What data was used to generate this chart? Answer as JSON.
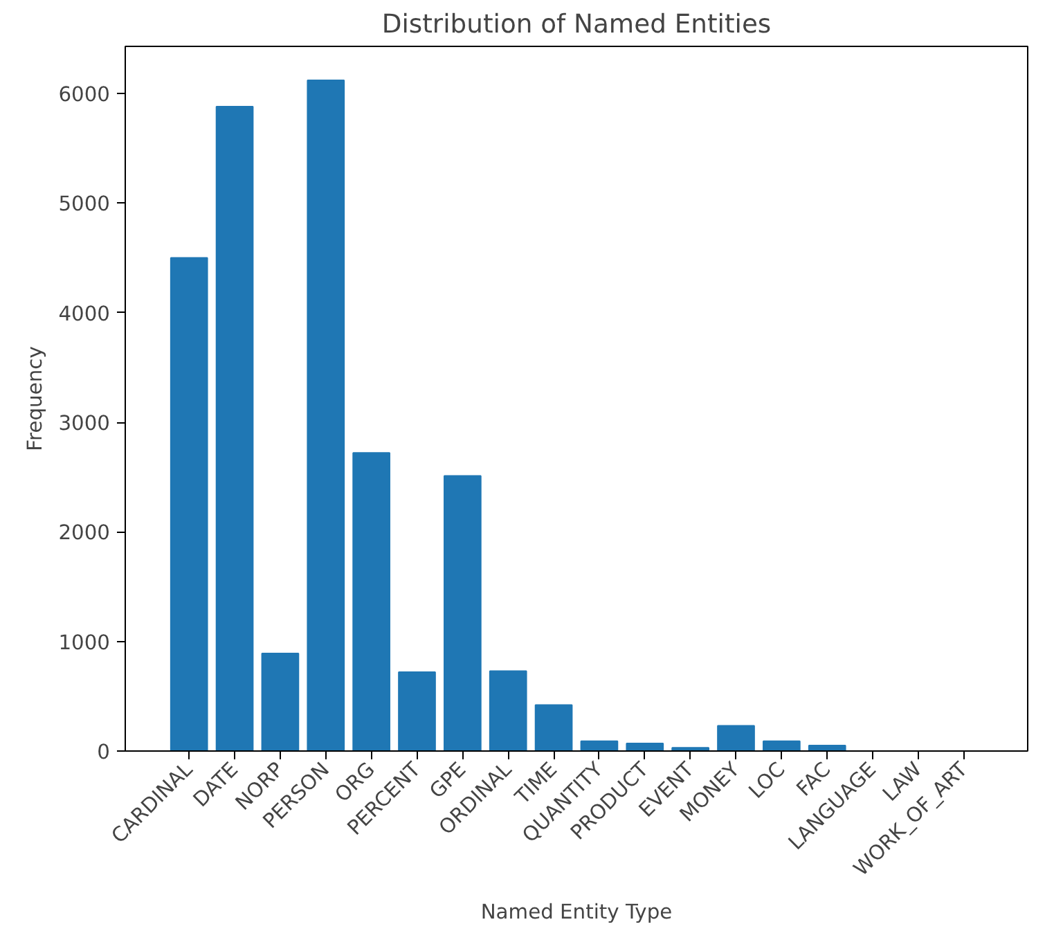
{
  "chart_data": {
    "type": "bar",
    "title": "Distribution of Named Entities",
    "xlabel": "Named Entity Type",
    "ylabel": "Frequency",
    "categories": [
      "CARDINAL",
      "DATE",
      "NORP",
      "PERSON",
      "ORG",
      "PERCENT",
      "GPE",
      "ORDINAL",
      "TIME",
      "QUANTITY",
      "PRODUCT",
      "EVENT",
      "MONEY",
      "LOC",
      "FAC",
      "LANGUAGE",
      "LAW",
      "WORK_OF_ART"
    ],
    "values": [
      4500,
      5880,
      890,
      6120,
      2720,
      720,
      2510,
      730,
      420,
      90,
      70,
      30,
      230,
      90,
      50,
      0,
      0,
      0
    ],
    "color": "#1f77b4",
    "ylim": [
      0,
      6430
    ],
    "yticks": [
      0,
      1000,
      2000,
      3000,
      4000,
      5000,
      6000
    ],
    "grid": false
  }
}
